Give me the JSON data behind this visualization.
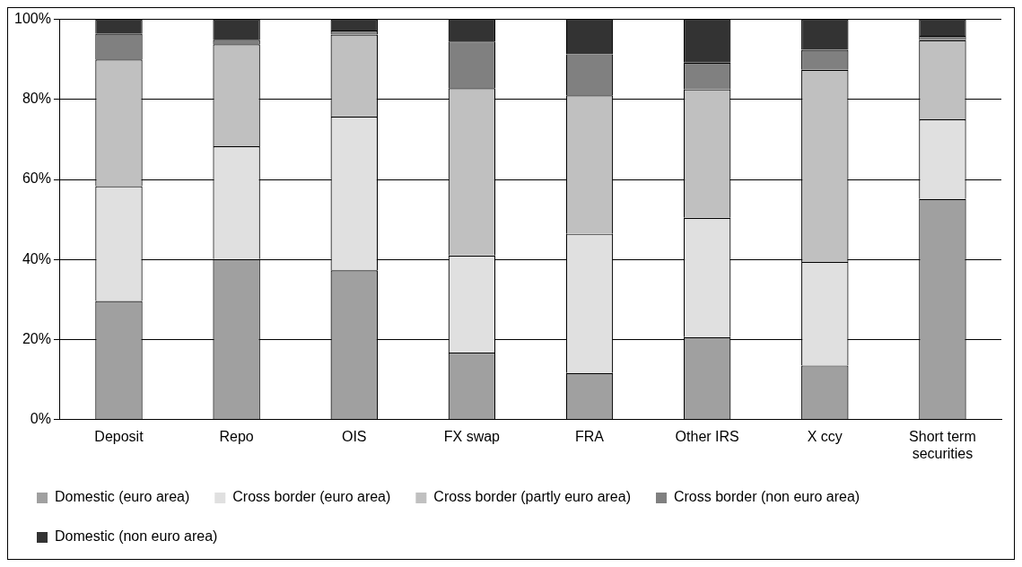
{
  "chart_data": {
    "type": "bar",
    "stacked": true,
    "categories": [
      "Deposit",
      "Repo",
      "OIS",
      "FX swap",
      "FRA",
      "Other IRS",
      "X ccy",
      "Short term securities"
    ],
    "series": [
      {
        "name": "Domestic (euro area)",
        "color": "#a0a0a0",
        "values": [
          29.6,
          40.1,
          37.3,
          16.7,
          11.6,
          20.6,
          13.5,
          55.1
        ]
      },
      {
        "name": "Cross border (euro area)",
        "color": "#e0e0e0",
        "values": [
          28.7,
          28.2,
          38.4,
          24.3,
          34.8,
          29.8,
          25.9,
          19.9
        ]
      },
      {
        "name": "Cross border (partly euro area)",
        "color": "#c0c0c0",
        "values": [
          31.7,
          25.5,
          20.5,
          41.8,
          34.6,
          32.1,
          48.0,
          19.8
        ]
      },
      {
        "name": "Cross border (non euro area)",
        "color": "#808080",
        "values": [
          6.4,
          1.1,
          1.0,
          11.7,
          10.3,
          6.7,
          5.0,
          1.1
        ]
      },
      {
        "name": "Domestic (non euro area)",
        "color": "#333333",
        "values": [
          3.6,
          5.1,
          2.8,
          5.5,
          8.7,
          10.8,
          7.6,
          4.1
        ]
      }
    ],
    "ylim": [
      0,
      100
    ],
    "yticks": [
      {
        "value": 0,
        "label": "0%"
      },
      {
        "value": 20,
        "label": "20%"
      },
      {
        "value": 40,
        "label": "40%"
      },
      {
        "value": 60,
        "label": "60%"
      },
      {
        "value": 80,
        "label": "80%"
      },
      {
        "value": 100,
        "label": "100%"
      }
    ],
    "grid": "y",
    "legend": "bottom"
  }
}
